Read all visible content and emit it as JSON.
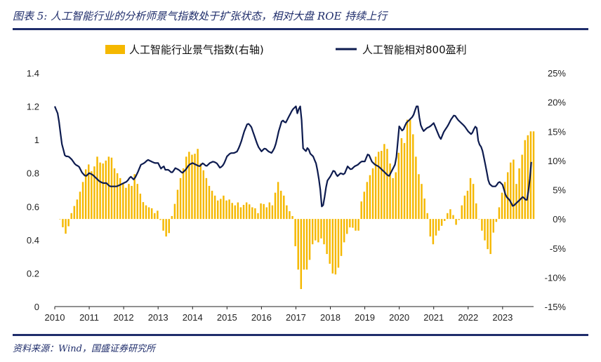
{
  "header": {
    "title": "图表 5:  人工智能行业的分析师景气指数处于扩张状态，相对大盘 ROE 持续上行"
  },
  "footer": {
    "source": "资料来源：Wind，国盛证券研究所"
  },
  "colors": {
    "bar": "#f5b800",
    "line": "#0d1b4f",
    "rule": "#1f2d6b"
  },
  "chart_data": {
    "type": "bar+line",
    "title": "",
    "legend": [
      {
        "name": "人工智能行业景气指数(右轴)",
        "type": "bar",
        "color": "#f5b800"
      },
      {
        "name": "人工智能相对800盈利",
        "type": "line",
        "color": "#0d1b4f"
      }
    ],
    "x_axis": {
      "min": 2010,
      "max": 2023.9,
      "ticks": [
        "2010",
        "2011",
        "2012",
        "2013",
        "2014",
        "2015",
        "2016",
        "2017",
        "2018",
        "2019",
        "2020",
        "2021",
        "2022",
        "2023"
      ]
    },
    "y_left": {
      "min": 0,
      "max": 1.4,
      "ticks": [
        "0",
        "0.2",
        "0.4",
        "0.6",
        "0.8",
        "1",
        "1.2",
        "1.4"
      ],
      "tick_values": [
        0,
        0.2,
        0.4,
        0.6,
        0.8,
        1,
        1.2,
        1.4
      ]
    },
    "y_right": {
      "min": -15,
      "max": 25,
      "ticks": [
        "-15%",
        "-10%",
        "-5%",
        "0%",
        "5%",
        "10%",
        "15%",
        "20%",
        "25%"
      ],
      "tick_values": [
        -15,
        -10,
        -5,
        0,
        5,
        10,
        15,
        20,
        25
      ]
    },
    "series": [
      {
        "name": "人工智能行业景气指数(右轴)",
        "type": "bar",
        "axis": "right",
        "unit": "%",
        "keypoints": [
          [
            2010.15,
            0
          ],
          [
            2010.2,
            -1
          ],
          [
            2010.28,
            -2
          ],
          [
            2010.35,
            -3
          ],
          [
            2010.45,
            0.5
          ],
          [
            2010.55,
            2
          ],
          [
            2010.7,
            4
          ],
          [
            2010.85,
            7
          ],
          [
            2010.95,
            10
          ],
          [
            2011.05,
            8
          ],
          [
            2011.15,
            9
          ],
          [
            2011.25,
            11
          ],
          [
            2011.35,
            9
          ],
          [
            2011.45,
            10
          ],
          [
            2011.55,
            10
          ],
          [
            2011.6,
            12
          ],
          [
            2011.7,
            9
          ],
          [
            2011.8,
            8
          ],
          [
            2011.9,
            7
          ],
          [
            2012.0,
            6
          ],
          [
            2012.1,
            5
          ],
          [
            2012.2,
            7
          ],
          [
            2012.25,
            5
          ],
          [
            2012.3,
            8
          ],
          [
            2012.45,
            5
          ],
          [
            2012.55,
            3
          ],
          [
            2012.7,
            2
          ],
          [
            2012.8,
            2
          ],
          [
            2012.9,
            1
          ],
          [
            2013.0,
            1.5
          ],
          [
            2013.1,
            -1
          ],
          [
            2013.2,
            -3
          ],
          [
            2013.3,
            -3
          ],
          [
            2013.4,
            0.5
          ],
          [
            2013.5,
            3
          ],
          [
            2013.6,
            6
          ],
          [
            2013.7,
            8
          ],
          [
            2013.8,
            10
          ],
          [
            2013.85,
            12
          ],
          [
            2013.95,
            11
          ],
          [
            2014.05,
            11
          ],
          [
            2014.15,
            12
          ],
          [
            2014.25,
            9
          ],
          [
            2014.35,
            8
          ],
          [
            2014.45,
            6
          ],
          [
            2014.55,
            5
          ],
          [
            2014.65,
            4
          ],
          [
            2014.75,
            3
          ],
          [
            2014.9,
            4
          ],
          [
            2015.0,
            3
          ],
          [
            2015.1,
            3.5
          ],
          [
            2015.2,
            2
          ],
          [
            2015.3,
            3
          ],
          [
            2015.4,
            2
          ],
          [
            2015.5,
            2.5
          ],
          [
            2015.6,
            3
          ],
          [
            2015.7,
            2
          ],
          [
            2015.8,
            2
          ],
          [
            2015.9,
            1
          ],
          [
            2016.0,
            3
          ],
          [
            2016.15,
            2
          ],
          [
            2016.25,
            3
          ],
          [
            2016.35,
            2
          ],
          [
            2016.45,
            7
          ],
          [
            2016.55,
            5
          ],
          [
            2016.65,
            4
          ],
          [
            2016.75,
            2
          ],
          [
            2016.9,
            0.5
          ],
          [
            2016.95,
            -2
          ],
          [
            2017.0,
            -6
          ],
          [
            2017.05,
            -8
          ],
          [
            2017.1,
            -10
          ],
          [
            2017.15,
            -12
          ],
          [
            2017.25,
            -8
          ],
          [
            2017.35,
            -9
          ],
          [
            2017.45,
            -5
          ],
          [
            2017.55,
            -3
          ],
          [
            2017.6,
            -5
          ],
          [
            2017.7,
            -3
          ],
          [
            2017.8,
            -4
          ],
          [
            2017.9,
            -6
          ],
          [
            2018.0,
            -8
          ],
          [
            2018.1,
            -10
          ],
          [
            2018.2,
            -9
          ],
          [
            2018.3,
            -7
          ],
          [
            2018.35,
            -5
          ],
          [
            2018.45,
            -3
          ],
          [
            2018.6,
            -1
          ],
          [
            2018.7,
            -2
          ],
          [
            2018.85,
            -2
          ],
          [
            2018.9,
            3
          ],
          [
            2019.0,
            5
          ],
          [
            2019.1,
            7
          ],
          [
            2019.2,
            8
          ],
          [
            2019.3,
            10
          ],
          [
            2019.35,
            12
          ],
          [
            2019.45,
            11
          ],
          [
            2019.5,
            12
          ],
          [
            2019.55,
            13
          ],
          [
            2019.65,
            12
          ],
          [
            2019.75,
            9
          ],
          [
            2019.85,
            6
          ],
          [
            2019.95,
            10
          ],
          [
            2020.05,
            14
          ],
          [
            2020.15,
            13
          ],
          [
            2020.2,
            17
          ],
          [
            2020.25,
            17
          ],
          [
            2020.35,
            17
          ],
          [
            2020.45,
            12
          ],
          [
            2020.55,
            8
          ],
          [
            2020.65,
            6
          ],
          [
            2020.75,
            3
          ],
          [
            2020.85,
            0
          ],
          [
            2020.9,
            -3
          ],
          [
            2020.95,
            -5
          ],
          [
            2021.05,
            -3
          ],
          [
            2021.15,
            -2
          ],
          [
            2021.25,
            -1
          ],
          [
            2021.35,
            0
          ],
          [
            2021.45,
            2
          ],
          [
            2021.55,
            1
          ],
          [
            2021.65,
            -1
          ],
          [
            2021.75,
            0
          ],
          [
            2021.8,
            2
          ],
          [
            2021.9,
            4
          ],
          [
            2022.0,
            5
          ],
          [
            2022.1,
            8
          ],
          [
            2022.15,
            6
          ],
          [
            2022.25,
            2
          ],
          [
            2022.35,
            -1
          ],
          [
            2022.45,
            -3
          ],
          [
            2022.55,
            -5
          ],
          [
            2022.65,
            -6
          ],
          [
            2022.7,
            -3
          ],
          [
            2022.8,
            -1
          ],
          [
            2022.9,
            2
          ],
          [
            2023.0,
            5
          ],
          [
            2023.1,
            7
          ],
          [
            2023.2,
            9
          ],
          [
            2023.3,
            11
          ],
          [
            2023.4,
            6
          ],
          [
            2023.45,
            8
          ],
          [
            2023.55,
            10
          ],
          [
            2023.6,
            13
          ],
          [
            2023.7,
            14
          ],
          [
            2023.8,
            15
          ],
          [
            2023.9,
            15
          ]
        ]
      },
      {
        "name": "人工智能相对800盈利",
        "type": "line",
        "axis": "left",
        "keypoints": [
          [
            2010.0,
            1.2
          ],
          [
            2010.1,
            1.15
          ],
          [
            2010.2,
            0.98
          ],
          [
            2010.3,
            0.9
          ],
          [
            2010.4,
            0.9
          ],
          [
            2010.5,
            0.88
          ],
          [
            2010.6,
            0.85
          ],
          [
            2010.7,
            0.84
          ],
          [
            2010.8,
            0.8
          ],
          [
            2010.9,
            0.78
          ],
          [
            2011.0,
            0.8
          ],
          [
            2011.1,
            0.79
          ],
          [
            2011.2,
            0.77
          ],
          [
            2011.3,
            0.75
          ],
          [
            2011.4,
            0.74
          ],
          [
            2011.5,
            0.74
          ],
          [
            2011.6,
            0.72
          ],
          [
            2011.7,
            0.72
          ],
          [
            2011.8,
            0.72
          ],
          [
            2011.9,
            0.73
          ],
          [
            2012.0,
            0.74
          ],
          [
            2012.1,
            0.75
          ],
          [
            2012.2,
            0.78
          ],
          [
            2012.3,
            0.76
          ],
          [
            2012.4,
            0.8
          ],
          [
            2012.5,
            0.85
          ],
          [
            2012.6,
            0.86
          ],
          [
            2012.7,
            0.88
          ],
          [
            2012.8,
            0.87
          ],
          [
            2012.9,
            0.86
          ],
          [
            2013.0,
            0.86
          ],
          [
            2013.1,
            0.82
          ],
          [
            2013.15,
            0.85
          ],
          [
            2013.2,
            0.82
          ],
          [
            2013.3,
            0.82
          ],
          [
            2013.4,
            0.8
          ],
          [
            2013.5,
            0.83
          ],
          [
            2013.6,
            0.82
          ],
          [
            2013.7,
            0.8
          ],
          [
            2013.8,
            0.82
          ],
          [
            2013.9,
            0.85
          ],
          [
            2014.0,
            0.86
          ],
          [
            2014.1,
            0.85
          ],
          [
            2014.2,
            0.84
          ],
          [
            2014.3,
            0.86
          ],
          [
            2014.4,
            0.84
          ],
          [
            2014.5,
            0.86
          ],
          [
            2014.6,
            0.87
          ],
          [
            2014.7,
            0.86
          ],
          [
            2014.8,
            0.83
          ],
          [
            2014.9,
            0.85
          ],
          [
            2015.0,
            0.9
          ],
          [
            2015.1,
            0.92
          ],
          [
            2015.2,
            0.92
          ],
          [
            2015.3,
            0.93
          ],
          [
            2015.4,
            0.98
          ],
          [
            2015.5,
            1.05
          ],
          [
            2015.6,
            1.1
          ],
          [
            2015.7,
            1.08
          ],
          [
            2015.8,
            1.02
          ],
          [
            2015.9,
            0.96
          ],
          [
            2016.0,
            0.93
          ],
          [
            2016.1,
            0.95
          ],
          [
            2016.2,
            0.93
          ],
          [
            2016.3,
            0.92
          ],
          [
            2016.4,
            0.96
          ],
          [
            2016.5,
            1.05
          ],
          [
            2016.6,
            1.12
          ],
          [
            2016.7,
            1.1
          ],
          [
            2016.8,
            1.14
          ],
          [
            2016.9,
            1.18
          ],
          [
            2017.0,
            1.2
          ],
          [
            2017.05,
            1.15
          ],
          [
            2017.1,
            1.2
          ],
          [
            2017.15,
            1.2
          ],
          [
            2017.2,
            0.95
          ],
          [
            2017.3,
            0.93
          ],
          [
            2017.35,
            0.96
          ],
          [
            2017.4,
            0.92
          ],
          [
            2017.5,
            0.9
          ],
          [
            2017.6,
            0.85
          ],
          [
            2017.7,
            0.72
          ],
          [
            2017.75,
            0.6
          ],
          [
            2017.8,
            0.61
          ],
          [
            2017.9,
            0.75
          ],
          [
            2018.0,
            0.78
          ],
          [
            2018.1,
            0.82
          ],
          [
            2018.2,
            0.78
          ],
          [
            2018.3,
            0.8
          ],
          [
            2018.4,
            0.79
          ],
          [
            2018.5,
            0.84
          ],
          [
            2018.6,
            0.82
          ],
          [
            2018.7,
            0.84
          ],
          [
            2018.8,
            0.85
          ],
          [
            2018.9,
            0.87
          ],
          [
            2019.0,
            0.87
          ],
          [
            2019.1,
            0.92
          ],
          [
            2019.2,
            0.87
          ],
          [
            2019.3,
            0.85
          ],
          [
            2019.4,
            0.84
          ],
          [
            2019.5,
            0.82
          ],
          [
            2019.6,
            0.8
          ],
          [
            2019.7,
            0.78
          ],
          [
            2019.8,
            0.82
          ],
          [
            2019.9,
            0.86
          ],
          [
            2020.0,
            1.08
          ],
          [
            2020.1,
            1.05
          ],
          [
            2020.2,
            1.1
          ],
          [
            2020.3,
            1.12
          ],
          [
            2020.4,
            1.14
          ],
          [
            2020.5,
            1.2
          ],
          [
            2020.55,
            1.2
          ],
          [
            2020.6,
            1.1
          ],
          [
            2020.7,
            1.05
          ],
          [
            2020.8,
            1.07
          ],
          [
            2020.9,
            1.08
          ],
          [
            2021.0,
            1.1
          ],
          [
            2021.1,
            1.05
          ],
          [
            2021.2,
            1.0
          ],
          [
            2021.3,
            1.05
          ],
          [
            2021.4,
            1.08
          ],
          [
            2021.5,
            1.12
          ],
          [
            2021.6,
            1.15
          ],
          [
            2021.7,
            1.12
          ],
          [
            2021.8,
            1.1
          ],
          [
            2021.9,
            1.08
          ],
          [
            2022.0,
            1.05
          ],
          [
            2022.1,
            1.03
          ],
          [
            2022.2,
            1.08
          ],
          [
            2022.25,
            1.07
          ],
          [
            2022.3,
            0.98
          ],
          [
            2022.4,
            0.95
          ],
          [
            2022.5,
            0.85
          ],
          [
            2022.6,
            0.74
          ],
          [
            2022.7,
            0.72
          ],
          [
            2022.8,
            0.72
          ],
          [
            2022.9,
            0.75
          ],
          [
            2023.0,
            0.73
          ],
          [
            2023.1,
            0.66
          ],
          [
            2023.2,
            0.64
          ],
          [
            2023.3,
            0.6
          ],
          [
            2023.4,
            0.62
          ],
          [
            2023.5,
            0.64
          ],
          [
            2023.6,
            0.66
          ],
          [
            2023.65,
            0.64
          ],
          [
            2023.72,
            0.64
          ],
          [
            2023.8,
            0.78
          ],
          [
            2023.85,
            0.91
          ]
        ]
      }
    ]
  }
}
